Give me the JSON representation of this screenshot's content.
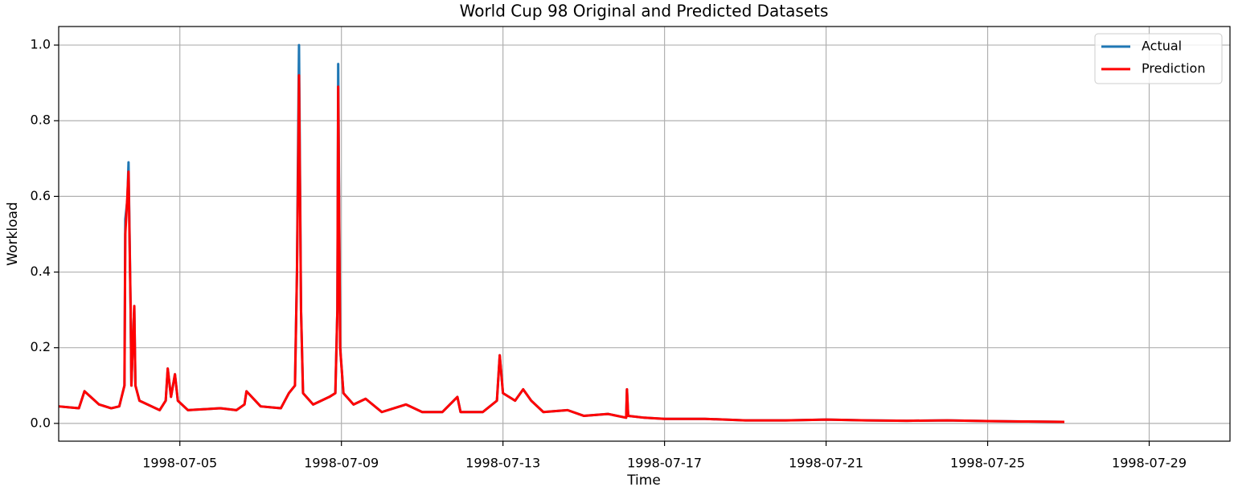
{
  "chart_data": {
    "type": "line",
    "title": "World Cup 98 Original and Predicted Datasets",
    "x_label": "Time",
    "y_label": "Workload",
    "x": [
      "1998-07-02T00:00",
      "1998-07-02T12:00",
      "1998-07-02T15:20",
      "1998-07-03T00:00",
      "1998-07-03T07:12",
      "1998-07-03T12:00",
      "1998-07-03T15:05",
      "1998-07-03T15:35",
      "1998-07-03T16:48",
      "1998-07-03T17:30",
      "1998-07-03T18:45",
      "1998-07-03T19:12",
      "1998-07-03T20:24",
      "1998-07-03T20:55",
      "1998-07-03T21:36",
      "1998-07-04T00:00",
      "1998-07-04T12:00",
      "1998-07-04T15:36",
      "1998-07-04T16:48",
      "1998-07-04T18:45",
      "1998-07-04T21:05",
      "1998-07-04T22:48",
      "1998-07-05T04:48",
      "1998-07-06T00:00",
      "1998-07-06T09:36",
      "1998-07-06T14:24",
      "1998-07-06T15:36",
      "1998-07-07T00:00",
      "1998-07-07T12:00",
      "1998-07-07T16:48",
      "1998-07-07T20:24",
      "1998-07-07T21:36",
      "1998-07-07T22:20",
      "1998-07-07T22:48",
      "1998-07-08T00:00",
      "1998-07-08T01:12",
      "1998-07-08T07:12",
      "1998-07-08T16:48",
      "1998-07-08T20:24",
      "1998-07-08T21:36",
      "1998-07-08T22:05",
      "1998-07-08T23:15",
      "1998-07-09T01:12",
      "1998-07-09T07:12",
      "1998-07-09T14:24",
      "1998-07-10T00:00",
      "1998-07-10T14:24",
      "1998-07-11T00:00",
      "1998-07-11T12:00",
      "1998-07-11T20:55",
      "1998-07-11T22:48",
      "1998-07-12T12:00",
      "1998-07-12T20:24",
      "1998-07-12T22:05",
      "1998-07-13T00:00",
      "1998-07-13T07:12",
      "1998-07-13T12:00",
      "1998-07-13T16:48",
      "1998-07-14T00:00",
      "1998-07-14T14:24",
      "1998-07-15T00:00",
      "1998-07-15T14:24",
      "1998-07-16T01:12",
      "1998-07-16T01:40",
      "1998-07-16T02:24",
      "1998-07-16T12:00",
      "1998-07-17T00:00",
      "1998-07-18T00:00",
      "1998-07-19T00:00",
      "1998-07-20T00:00",
      "1998-07-21T00:00",
      "1998-07-22T00:00",
      "1998-07-23T00:00",
      "1998-07-24T00:00",
      "1998-07-25T00:00",
      "1998-07-26T00:00",
      "1998-07-26T21:36"
    ],
    "series": [
      {
        "name": "Actual",
        "color": "#1f77b4",
        "values": [
          0.045,
          0.04,
          0.085,
          0.05,
          0.04,
          0.045,
          0.1,
          0.54,
          0.59,
          0.69,
          0.3,
          0.1,
          0.25,
          0.31,
          0.1,
          0.06,
          0.035,
          0.06,
          0.145,
          0.07,
          0.13,
          0.06,
          0.035,
          0.04,
          0.035,
          0.05,
          0.085,
          0.045,
          0.04,
          0.08,
          0.1,
          0.4,
          0.78,
          1.0,
          0.3,
          0.08,
          0.05,
          0.07,
          0.08,
          0.3,
          0.95,
          0.2,
          0.08,
          0.05,
          0.065,
          0.03,
          0.05,
          0.03,
          0.03,
          0.07,
          0.03,
          0.03,
          0.06,
          0.18,
          0.08,
          0.06,
          0.09,
          0.06,
          0.03,
          0.035,
          0.02,
          0.025,
          0.015,
          0.09,
          0.02,
          0.015,
          0.012,
          0.012,
          0.008,
          0.008,
          0.01,
          0.008,
          0.007,
          0.008,
          0.006,
          0.005,
          0.004
        ]
      },
      {
        "name": "Prediction",
        "color": "#ff0000",
        "values": [
          0.045,
          0.04,
          0.085,
          0.05,
          0.04,
          0.045,
          0.1,
          0.5,
          0.6,
          0.665,
          0.3,
          0.1,
          0.25,
          0.31,
          0.1,
          0.06,
          0.035,
          0.06,
          0.145,
          0.07,
          0.13,
          0.06,
          0.035,
          0.04,
          0.035,
          0.05,
          0.085,
          0.045,
          0.04,
          0.08,
          0.1,
          0.4,
          0.7,
          0.92,
          0.3,
          0.08,
          0.05,
          0.07,
          0.08,
          0.3,
          0.89,
          0.2,
          0.08,
          0.05,
          0.065,
          0.03,
          0.05,
          0.03,
          0.03,
          0.07,
          0.03,
          0.03,
          0.06,
          0.18,
          0.08,
          0.06,
          0.09,
          0.06,
          0.03,
          0.035,
          0.02,
          0.025,
          0.015,
          0.09,
          0.02,
          0.015,
          0.012,
          0.012,
          0.008,
          0.008,
          0.01,
          0.008,
          0.007,
          0.008,
          0.006,
          0.005,
          0.004
        ]
      }
    ],
    "xlim": [
      "1998-07-02",
      "1998-07-31"
    ],
    "xticks": [
      "1998-07-05",
      "1998-07-09",
      "1998-07-13",
      "1998-07-17",
      "1998-07-21",
      "1998-07-25",
      "1998-07-29"
    ],
    "ylim": [
      -0.047,
      1.049
    ],
    "yticks": [
      {
        "value": 0,
        "label": "0.0"
      },
      0.2,
      0.4,
      0.6,
      0.8,
      {
        "value": 1,
        "label": "1.0"
      }
    ],
    "grid": true,
    "legend": "upper right"
  }
}
